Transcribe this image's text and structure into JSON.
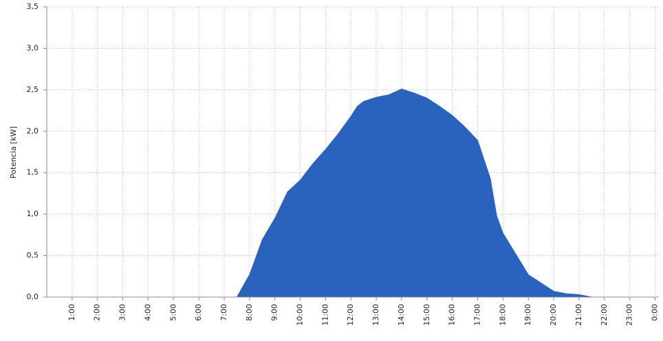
{
  "chart_data": {
    "type": "area",
    "y_label": "Potencia [kW]",
    "color": "#2a63be",
    "grid": true,
    "x": [
      7,
      7.5,
      8,
      8.5,
      9,
      9.5,
      10,
      10.5,
      11,
      11.5,
      12,
      12.25,
      12.5,
      13,
      13.5,
      14,
      14.5,
      15,
      15.5,
      16,
      16.5,
      17,
      17.5,
      17.75,
      18,
      18.5,
      19,
      19.5,
      20,
      20.5,
      21,
      21.5
    ],
    "values": [
      0,
      0,
      0.27,
      0.69,
      0.95,
      1.27,
      1.41,
      1.61,
      1.78,
      1.97,
      2.18,
      2.3,
      2.36,
      2.41,
      2.44,
      2.51,
      2.46,
      2.4,
      2.3,
      2.19,
      2.05,
      1.89,
      1.43,
      0.98,
      0.77,
      0.52,
      0.27,
      0.17,
      0.07,
      0.04,
      0.03,
      0
    ],
    "xlim": [
      0,
      24.15
    ],
    "xticks": [
      {
        "value": 1,
        "label": "1:00"
      },
      {
        "value": 2,
        "label": "2:00"
      },
      {
        "value": 3,
        "label": "3:00"
      },
      {
        "value": 4,
        "label": "4:00"
      },
      {
        "value": 5,
        "label": "5:00"
      },
      {
        "value": 6,
        "label": "6:00"
      },
      {
        "value": 7,
        "label": "7:00"
      },
      {
        "value": 8,
        "label": "8:00"
      },
      {
        "value": 9,
        "label": "9:00"
      },
      {
        "value": 10,
        "label": "10:00"
      },
      {
        "value": 11,
        "label": "11:00"
      },
      {
        "value": 12,
        "label": "12:00"
      },
      {
        "value": 13,
        "label": "13:00"
      },
      {
        "value": 14,
        "label": "14:00"
      },
      {
        "value": 15,
        "label": "15:00"
      },
      {
        "value": 16,
        "label": "16:00"
      },
      {
        "value": 17,
        "label": "17:00"
      },
      {
        "value": 18,
        "label": "18:00"
      },
      {
        "value": 19,
        "label": "19:00"
      },
      {
        "value": 20,
        "label": "20:00"
      },
      {
        "value": 21,
        "label": "21:00"
      },
      {
        "value": 22,
        "label": "22:00"
      },
      {
        "value": 23,
        "label": "23:00"
      },
      {
        "value": 24,
        "label": "0:00"
      }
    ],
    "ylim": [
      0,
      3.5
    ],
    "yticks": [
      {
        "value": 0,
        "label": "0,0"
      },
      {
        "value": 0.5,
        "label": "0,5"
      },
      {
        "value": 1,
        "label": "1,0"
      },
      {
        "value": 1.5,
        "label": "1,5"
      },
      {
        "value": 2,
        "label": "2,0"
      },
      {
        "value": 2.5,
        "label": "2,5"
      },
      {
        "value": 3,
        "label": "3,0"
      },
      {
        "value": 3.5,
        "label": "3,5"
      }
    ]
  }
}
